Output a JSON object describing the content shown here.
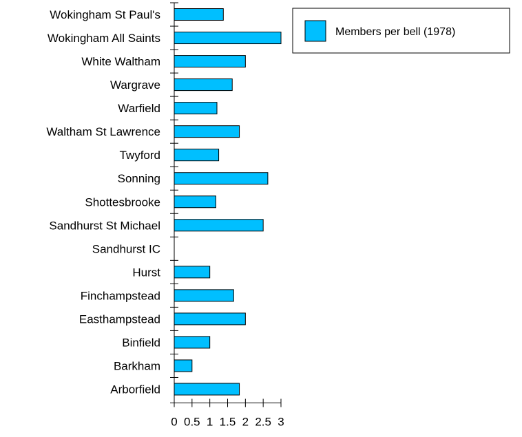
{
  "chart_data": {
    "type": "bar",
    "orientation": "horizontal",
    "categories": [
      "Wokingham St Paul's",
      "Wokingham All Saints",
      "White Waltham",
      "Wargrave",
      "Warfield",
      "Waltham St Lawrence",
      "Twyford",
      "Sonning",
      "Shottesbrooke",
      "Sandhurst St Michael",
      "Sandhurst IC",
      "Hurst",
      "Finchampstead",
      "Easthampstead",
      "Binfield",
      "Barkham",
      "Arborfield"
    ],
    "series": [
      {
        "name": "Members per bell (1978)",
        "color": "#00bfff",
        "values": [
          1.38,
          3.0,
          2.0,
          1.63,
          1.2,
          1.83,
          1.25,
          2.63,
          1.17,
          2.5,
          0,
          1.0,
          1.67,
          2.0,
          1.0,
          0.5,
          1.83
        ]
      }
    ],
    "xlim": [
      0,
      3
    ],
    "xticks": [
      "0",
      "0.5",
      "1",
      "1.5",
      "2",
      "2.5",
      "3"
    ],
    "legend_position": "top-right",
    "grid": false
  }
}
